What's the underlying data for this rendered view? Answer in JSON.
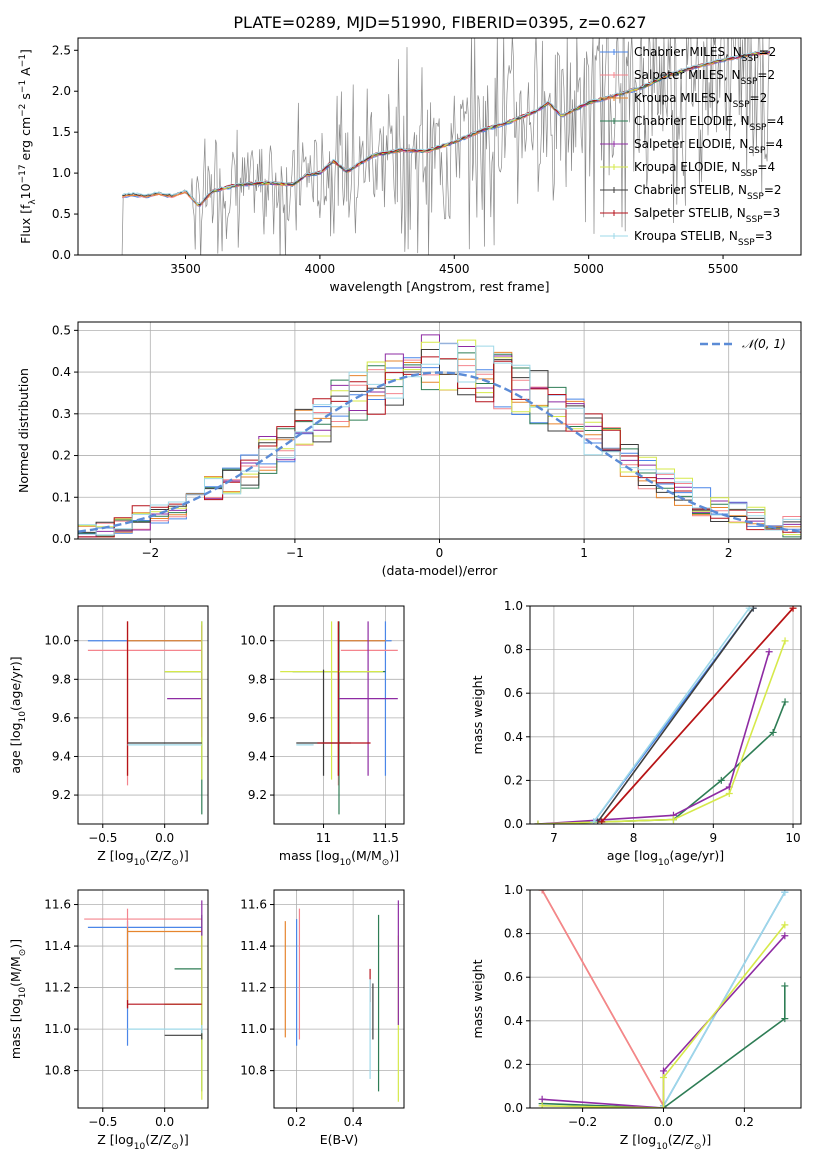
{
  "title": "PLATE=0289, MJD=51990, FIBERID=0395, z=0.627",
  "colors": {
    "chabrier_miles": "#4a86e8",
    "salpeter_miles": "#f4858e",
    "kroupa_miles": "#e6852e",
    "chabrier_elodie": "#2e7d55",
    "salpeter_elodie": "#8e2ba3",
    "kroupa_elodie": "#d6e94a",
    "chabrier_stelib": "#3d3d3d",
    "salpeter_stelib": "#b5121b",
    "kroupa_stelib": "#9ed8e8",
    "data": "#8a8a8a",
    "gaussian": "#5b8bd6"
  },
  "chart_data": [
    {
      "id": "spectrum",
      "type": "line",
      "xlabel": "wavelength [Angstrom, rest frame]",
      "ylabel": "Flux [f$_\\lambda$10$^{-17}$ erg cm$^{-2}$ s$^{-1}$ A$^{-1}$]",
      "ylabel_parts": [
        "Flux [f",
        "λ",
        "10",
        "−17",
        " erg cm",
        "−2",
        " s",
        "−1",
        " A",
        "−1",
        "]"
      ],
      "xlim": [
        3100,
        5790
      ],
      "ylim": [
        0,
        2.65
      ],
      "xticks": [
        3500,
        4000,
        4500,
        5000,
        5500
      ],
      "yticks": [
        0.0,
        0.5,
        1.0,
        1.5,
        2.0,
        2.5
      ],
      "grid": false,
      "legend_position": "top-right",
      "legend": [
        {
          "main": "Chabrier MILES, N",
          "sub": "SSP",
          "tail": "=2",
          "color_key": "chabrier_miles"
        },
        {
          "main": "Salpeter MILES, N",
          "sub": "SSP",
          "tail": "=2",
          "color_key": "salpeter_miles"
        },
        {
          "main": "Kroupa MILES, N",
          "sub": "SSP",
          "tail": "=2",
          "color_key": "kroupa_miles"
        },
        {
          "main": "Chabrier ELODIE, N",
          "sub": "SSP",
          "tail": "=4",
          "color_key": "chabrier_elodie"
        },
        {
          "main": "Salpeter ELODIE, N",
          "sub": "SSP",
          "tail": "=4",
          "color_key": "salpeter_elodie"
        },
        {
          "main": "Kroupa ELODIE, N",
          "sub": "SSP",
          "tail": "=4",
          "color_key": "kroupa_elodie"
        },
        {
          "main": "Chabrier STELIB, N",
          "sub": "SSP",
          "tail": "=2",
          "color_key": "chabrier_stelib"
        },
        {
          "main": "Salpeter STELIB, N",
          "sub": "SSP",
          "tail": "=3",
          "color_key": "salpeter_stelib"
        },
        {
          "main": "Kroupa STELIB, N",
          "sub": "SSP",
          "tail": "=3",
          "color_key": "kroupa_stelib"
        }
      ],
      "model_points": [
        [
          3260,
          0.0
        ],
        [
          3265,
          0.72
        ],
        [
          3300,
          0.74
        ],
        [
          3350,
          0.72
        ],
        [
          3400,
          0.75
        ],
        [
          3450,
          0.72
        ],
        [
          3500,
          0.78
        ],
        [
          3550,
          0.6
        ],
        [
          3600,
          0.78
        ],
        [
          3700,
          0.86
        ],
        [
          3800,
          0.88
        ],
        [
          3900,
          0.86
        ],
        [
          3950,
          0.98
        ],
        [
          4000,
          1.0
        ],
        [
          4050,
          1.15
        ],
        [
          4100,
          1.02
        ],
        [
          4200,
          1.22
        ],
        [
          4300,
          1.28
        ],
        [
          4400,
          1.27
        ],
        [
          4500,
          1.38
        ],
        [
          4600,
          1.52
        ],
        [
          4700,
          1.62
        ],
        [
          4800,
          1.75
        ],
        [
          4850,
          1.86
        ],
        [
          4900,
          1.7
        ],
        [
          5000,
          1.86
        ],
        [
          5100,
          1.95
        ],
        [
          5200,
          2.05
        ],
        [
          5300,
          2.2
        ],
        [
          5400,
          2.3
        ],
        [
          5500,
          2.38
        ],
        [
          5600,
          2.45
        ],
        [
          5680,
          2.48
        ]
      ]
    },
    {
      "id": "residuals",
      "type": "line",
      "xlabel": "(data-model)/error",
      "ylabel": "Normed distribution",
      "xlim": [
        -2.5,
        2.5
      ],
      "ylim": [
        0,
        0.52
      ],
      "xticks": [
        -2,
        -1,
        0,
        1,
        2
      ],
      "yticks": [
        0.0,
        0.1,
        0.2,
        0.3,
        0.4,
        0.5
      ],
      "grid": true,
      "legend_position": "top-right",
      "legend": [
        {
          "label": "𝒩(0, 1)",
          "style": "dashed",
          "color_key": "gaussian"
        }
      ],
      "histogram": [
        0.015,
        0.02,
        0.03,
        0.05,
        0.06,
        0.08,
        0.09,
        0.12,
        0.14,
        0.16,
        0.2,
        0.22,
        0.26,
        0.29,
        0.32,
        0.34,
        0.36,
        0.38,
        0.4,
        0.42,
        0.42,
        0.41,
        0.4,
        0.38,
        0.36,
        0.34,
        0.31,
        0.28,
        0.25,
        0.22,
        0.19,
        0.16,
        0.13,
        0.11,
        0.09,
        0.07,
        0.06,
        0.05,
        0.04,
        0.03
      ]
    },
    {
      "id": "age_vs_Z",
      "type": "scatter",
      "xlabel": "Z [log10(Z/Z⊙)]",
      "xlabel_parts": [
        "Z [log",
        "10",
        "(Z/Z",
        "⊙",
        ")]"
      ],
      "ylabel": "age [log10(age/yr)]",
      "ylabel_parts": [
        "age  [log",
        "10",
        "(age/yr)]"
      ],
      "xlim": [
        -0.7,
        0.35
      ],
      "ylim": [
        9.05,
        10.18
      ],
      "xticks": [
        -0.5,
        0.0
      ],
      "yticks": [
        9.2,
        9.4,
        9.6,
        9.8,
        10.0
      ],
      "grid": true
    },
    {
      "id": "age_vs_mass",
      "type": "scatter",
      "xlabel": "mass [log10(M/M⊙)]",
      "xlabel_parts": [
        "mass [log",
        "10",
        "(M/M",
        "⊙",
        ")]"
      ],
      "xlim": [
        10.6,
        11.65
      ],
      "ylim": [
        9.05,
        10.18
      ],
      "xticks": [
        11.0,
        11.5
      ],
      "yticks": [
        9.2,
        9.4,
        9.6,
        9.8,
        10.0
      ],
      "grid": true
    },
    {
      "id": "weight_vs_age",
      "type": "line",
      "xlabel": "age [log10(age/yr)]",
      "xlabel_parts": [
        "age  [log",
        "10",
        "(age/yr)]"
      ],
      "ylabel": "mass weight",
      "xlim": [
        6.7,
        10.1
      ],
      "ylim": [
        0,
        1.0
      ],
      "xticks": [
        7,
        8,
        9,
        10
      ],
      "yticks": [
        0.0,
        0.2,
        0.4,
        0.6,
        0.8,
        1.0
      ],
      "grid": true,
      "series": [
        {
          "color_key": "chabrier_miles",
          "x": [
            7.5,
            9.5
          ],
          "y": [
            0.01,
            0.99
          ]
        },
        {
          "color_key": "salpeter_miles",
          "x": [
            7.6,
            10.0
          ],
          "y": [
            0.01,
            0.99
          ]
        },
        {
          "color_key": "kroupa_miles",
          "x": [
            7.6,
            10.0
          ],
          "y": [
            0.01,
            0.99
          ]
        },
        {
          "color_key": "chabrier_elodie",
          "x": [
            6.8,
            8.5,
            9.1,
            9.75,
            9.9
          ],
          "y": [
            0.0,
            0.02,
            0.2,
            0.42,
            0.56
          ]
        },
        {
          "color_key": "salpeter_elodie",
          "x": [
            6.8,
            8.5,
            9.2,
            9.7
          ],
          "y": [
            0.0,
            0.04,
            0.17,
            0.79
          ]
        },
        {
          "color_key": "kroupa_elodie",
          "x": [
            6.8,
            8.5,
            9.2,
            9.9
          ],
          "y": [
            0.0,
            0.02,
            0.14,
            0.84
          ]
        },
        {
          "color_key": "chabrier_stelib",
          "x": [
            7.55,
            9.5
          ],
          "y": [
            0.01,
            0.99
          ]
        },
        {
          "color_key": "salpeter_stelib",
          "x": [
            7.6,
            10.0
          ],
          "y": [
            0.01,
            0.99
          ]
        },
        {
          "color_key": "kroupa_stelib",
          "x": [
            7.5,
            9.45
          ],
          "y": [
            0.01,
            0.99
          ]
        }
      ]
    },
    {
      "id": "mass_vs_Z",
      "type": "scatter",
      "xlabel": "Z [log10(Z/Z⊙)]",
      "xlabel_parts": [
        "Z [log",
        "10",
        "(Z/Z",
        "⊙",
        ")]"
      ],
      "ylabel": "mass [log10(M/M⊙)]",
      "ylabel_parts": [
        "mass [log",
        "10",
        "(M/M",
        "⊙",
        ")]"
      ],
      "xlim": [
        -0.7,
        0.35
      ],
      "ylim": [
        10.62,
        11.67
      ],
      "xticks": [
        -0.5,
        0.0
      ],
      "yticks": [
        10.8,
        11.0,
        11.2,
        11.4,
        11.6
      ],
      "grid": true
    },
    {
      "id": "mass_vs_ebv",
      "type": "scatter",
      "xlabel": "E(B-V)",
      "xlim": [
        0.12,
        0.58
      ],
      "ylim": [
        10.62,
        11.67
      ],
      "xticks": [
        0.2,
        0.4
      ],
      "yticks": [
        10.8,
        11.0,
        11.2,
        11.4,
        11.6
      ],
      "grid": true
    },
    {
      "id": "weight_vs_Z",
      "type": "line",
      "xlabel": "Z [log10(Z/Z⊙)]",
      "xlabel_parts": [
        "Z [log",
        "10",
        "(Z/Z",
        "⊙",
        ")]"
      ],
      "ylabel": "mass weight",
      "xlim": [
        -0.33,
        0.34
      ],
      "ylim": [
        0,
        1.0
      ],
      "xticks": [
        -0.2,
        0.0,
        0.2
      ],
      "yticks": [
        0.0,
        0.2,
        0.4,
        0.6,
        0.8,
        1.0
      ],
      "grid": true,
      "series": [
        {
          "color_key": "kroupa_miles",
          "x": [
            -0.3,
            0.0
          ],
          "y": [
            1.0,
            0.01
          ]
        },
        {
          "color_key": "salpeter_miles",
          "x": [
            -0.3,
            0.0
          ],
          "y": [
            1.0,
            0.01
          ]
        },
        {
          "color_key": "chabrier_miles",
          "x": [
            0.0,
            0.3
          ],
          "y": [
            0.01,
            0.99
          ]
        },
        {
          "color_key": "kroupa_stelib",
          "x": [
            0.0,
            0.3
          ],
          "y": [
            0.01,
            0.99
          ]
        },
        {
          "color_key": "chabrier_elodie",
          "x": [
            -0.3,
            0.0,
            0.3,
            0.3
          ],
          "y": [
            0.02,
            0.0,
            0.41,
            0.56
          ]
        },
        {
          "color_key": "salpeter_elodie",
          "x": [
            -0.3,
            0.0,
            0.0,
            0.3
          ],
          "y": [
            0.04,
            0.0,
            0.17,
            0.79
          ]
        },
        {
          "color_key": "kroupa_elodie",
          "x": [
            -0.3,
            0.0,
            0.0,
            0.3
          ],
          "y": [
            0.01,
            0.0,
            0.14,
            0.84
          ]
        }
      ]
    }
  ]
}
